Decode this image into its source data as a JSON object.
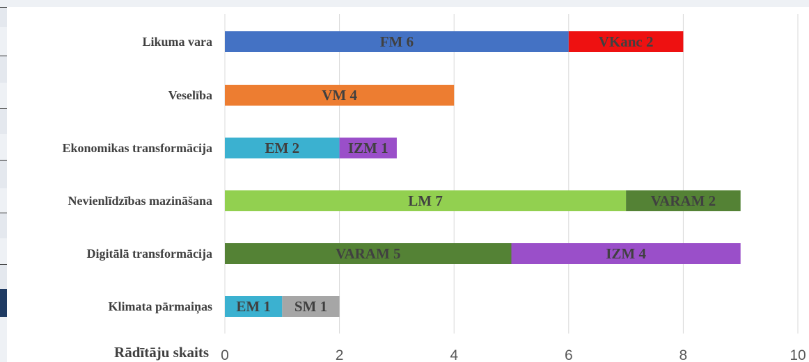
{
  "chart_data": {
    "type": "bar",
    "orientation": "horizontal",
    "stacked": true,
    "xlabel": "Rādītāju skaits",
    "xlim": [
      0,
      10
    ],
    "xticks": [
      0,
      2,
      4,
      6,
      8,
      10
    ],
    "grid": true,
    "categories": [
      "Likuma vara",
      "Veselība",
      "Ekonomikas transformācija",
      "Nevienlīdzības mazināšana",
      "Digitālā transformācija",
      "Klimata pārmaiņas"
    ],
    "bars": [
      {
        "category": "Likuma vara",
        "segments": [
          {
            "name": "FM",
            "value": 6,
            "label": "FM  6",
            "color": "#4472c4"
          },
          {
            "name": "VKanc",
            "value": 2,
            "label": "VKanc  2",
            "color": "#ee1111"
          }
        ]
      },
      {
        "category": "Veselība",
        "segments": [
          {
            "name": "VM",
            "value": 4,
            "label": "VM  4",
            "color": "#ed7d31"
          }
        ]
      },
      {
        "category": "Ekonomikas transformācija",
        "segments": [
          {
            "name": "EM",
            "value": 2,
            "label": "EM  2",
            "color": "#3bb1d0"
          },
          {
            "name": "IZM",
            "value": 1,
            "label": "IZM  1",
            "color": "#9a4fc9"
          }
        ]
      },
      {
        "category": "Nevienlīdzības mazināšana",
        "segments": [
          {
            "name": "LM",
            "value": 7,
            "label": "LM  7",
            "color": "#92d050"
          },
          {
            "name": "VARAM",
            "value": 2,
            "label": "VARAM  2",
            "color": "#548235"
          }
        ]
      },
      {
        "category": "Digitālā transformācija",
        "segments": [
          {
            "name": "VARAM",
            "value": 5,
            "label": "VARAM  5",
            "color": "#548235"
          },
          {
            "name": "IZM",
            "value": 4,
            "label": "IZM  4",
            "color": "#9a4fc9"
          }
        ]
      },
      {
        "category": "Klimata pārmaiņas",
        "segments": [
          {
            "name": "EM",
            "value": 1,
            "label": "EM  1",
            "color": "#3bb1d0"
          },
          {
            "name": "SM",
            "value": 1,
            "label": "SM  1",
            "color": "#a6a6a6"
          }
        ]
      }
    ]
  }
}
